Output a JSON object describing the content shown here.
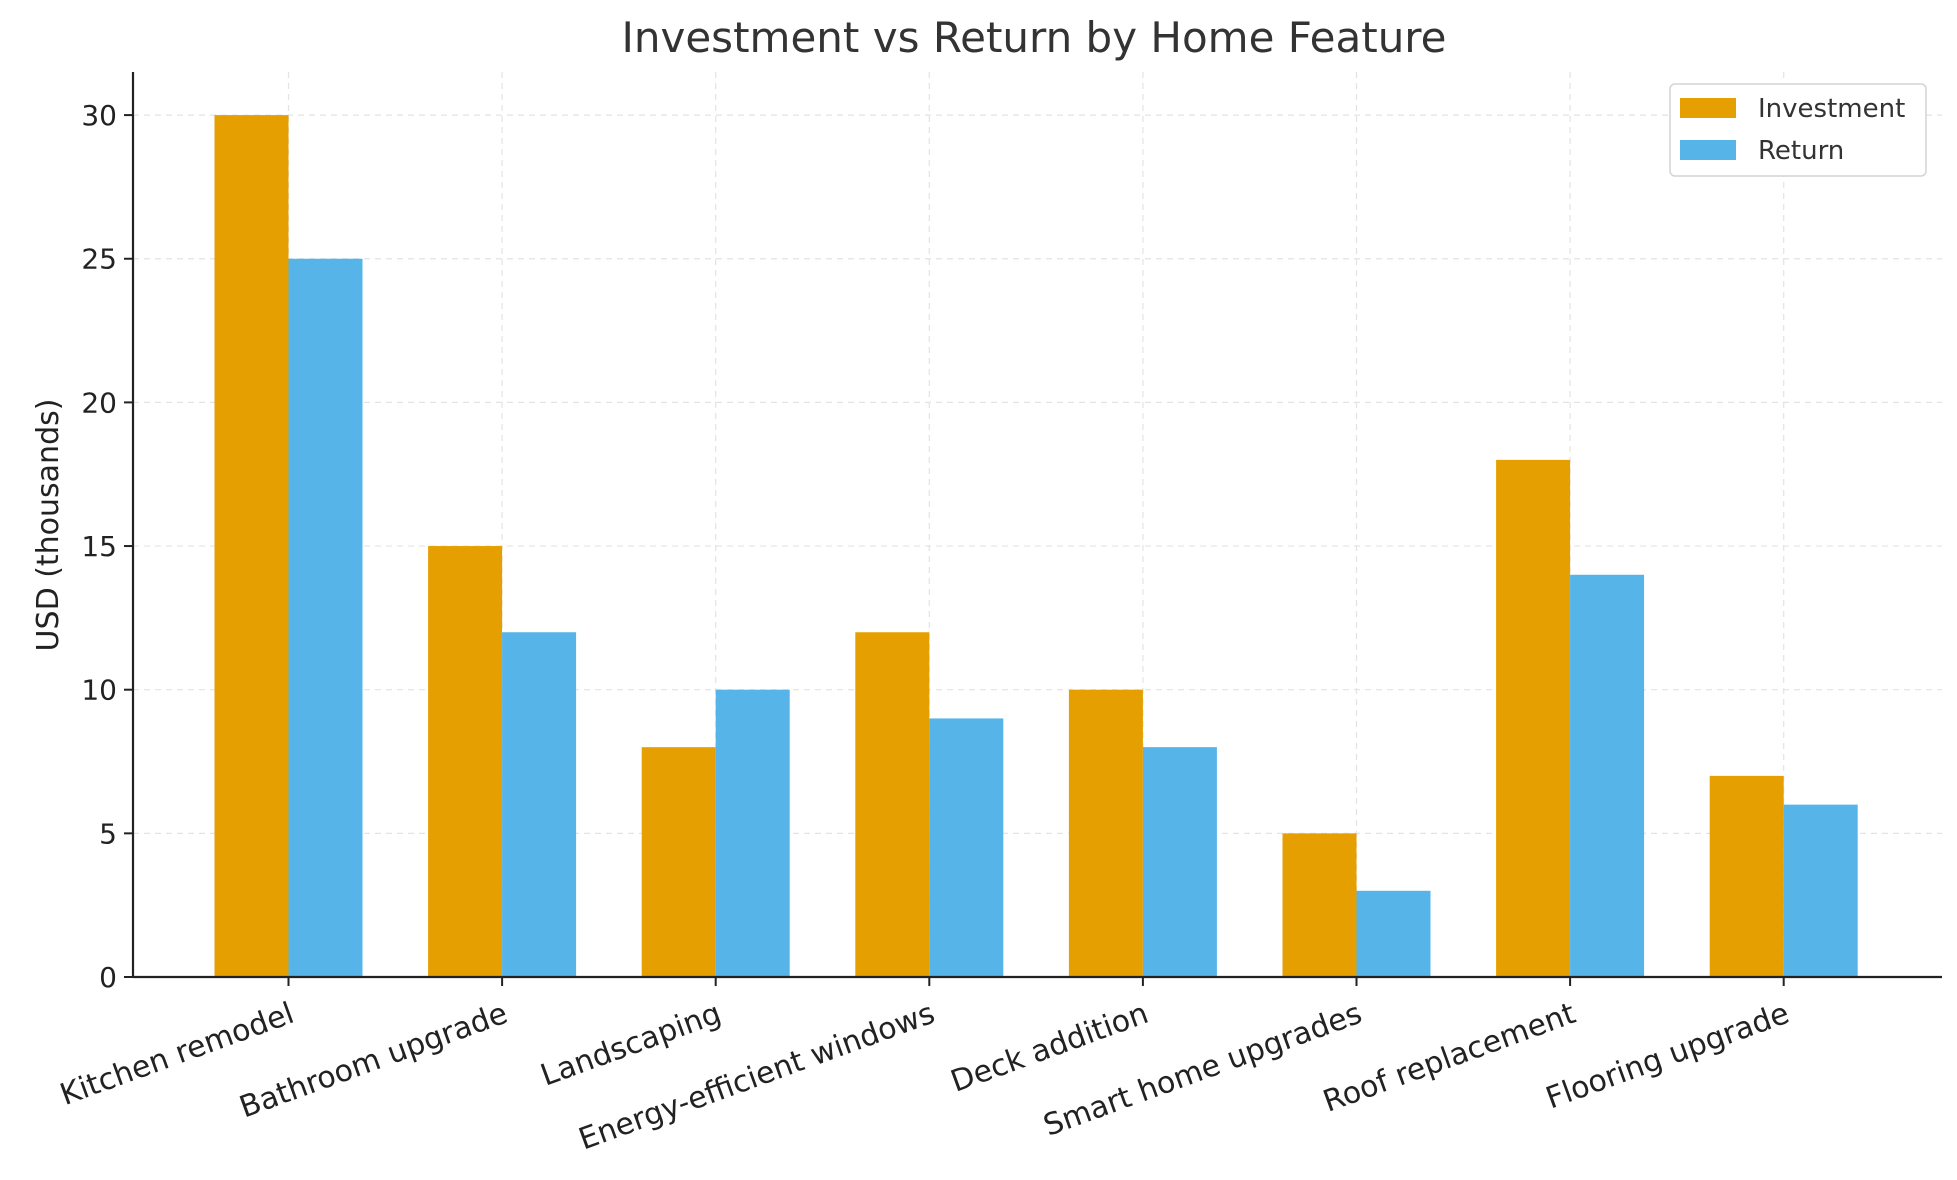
{
  "chart_data": {
    "type": "bar",
    "title": "Investment vs Return by Home Feature",
    "xlabel": "",
    "ylabel": "USD (thousands)",
    "categories": [
      "Kitchen remodel",
      "Bathroom upgrade",
      "Landscaping",
      "Energy-efficient windows",
      "Deck addition",
      "Smart home upgrades",
      "Roof replacement",
      "Flooring upgrade"
    ],
    "series": [
      {
        "name": "Investment",
        "color": "#E69F00",
        "values": [
          30,
          15,
          8,
          12,
          10,
          5,
          18,
          7
        ]
      },
      {
        "name": "Return",
        "color": "#56B4E9",
        "values": [
          25,
          12,
          10,
          9,
          8,
          3,
          14,
          6
        ]
      }
    ],
    "ylim": [
      0,
      31.5
    ],
    "yticks": [
      0,
      5,
      10,
      15,
      20,
      25,
      30
    ],
    "grid": true,
    "legend_position": "top-right"
  }
}
